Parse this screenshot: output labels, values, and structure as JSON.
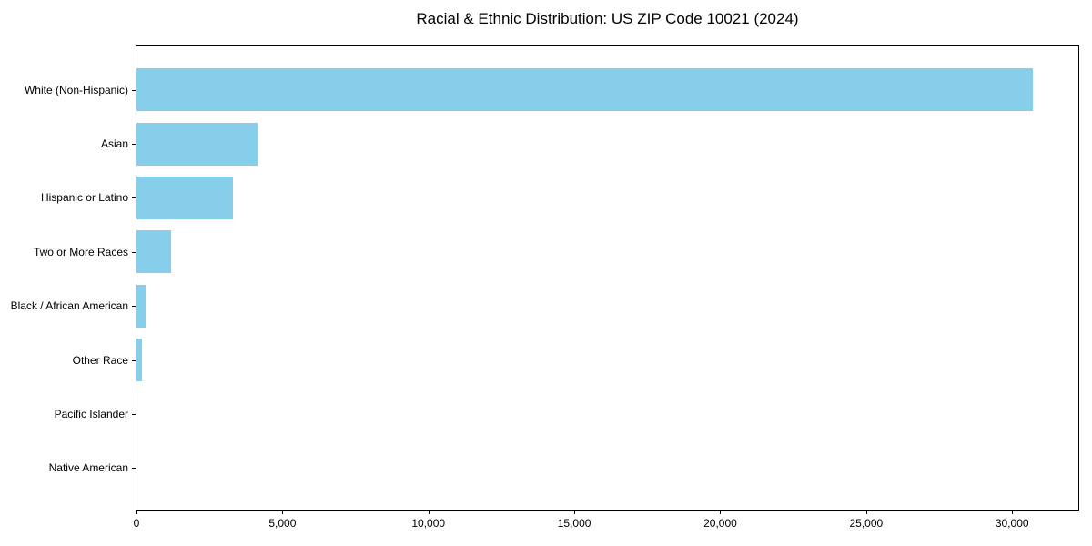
{
  "chart_data": {
    "type": "bar",
    "orientation": "horizontal",
    "title": "Racial & Ethnic Distribution: US ZIP Code 10021 (2024)",
    "categories": [
      "White (Non-Hispanic)",
      "Asian",
      "Hispanic or Latino",
      "Two or More Races",
      "Black / African American",
      "Other Race",
      "Pacific Islander",
      "Native American"
    ],
    "values": [
      30700,
      4150,
      3290,
      1180,
      320,
      200,
      0,
      0
    ],
    "xlabel": "",
    "ylabel": "",
    "xlim": [
      0,
      32270
    ],
    "xticks": [
      0,
      5000,
      10000,
      15000,
      20000,
      25000,
      30000
    ],
    "xtick_labels": [
      "0",
      "5,000",
      "10,000",
      "15,000",
      "20,000",
      "25,000",
      "30,000"
    ],
    "grid": false,
    "legend": null,
    "bar_color": "#87CEEB",
    "background_color": "#FFFFFF",
    "frame_color": "#000000"
  }
}
